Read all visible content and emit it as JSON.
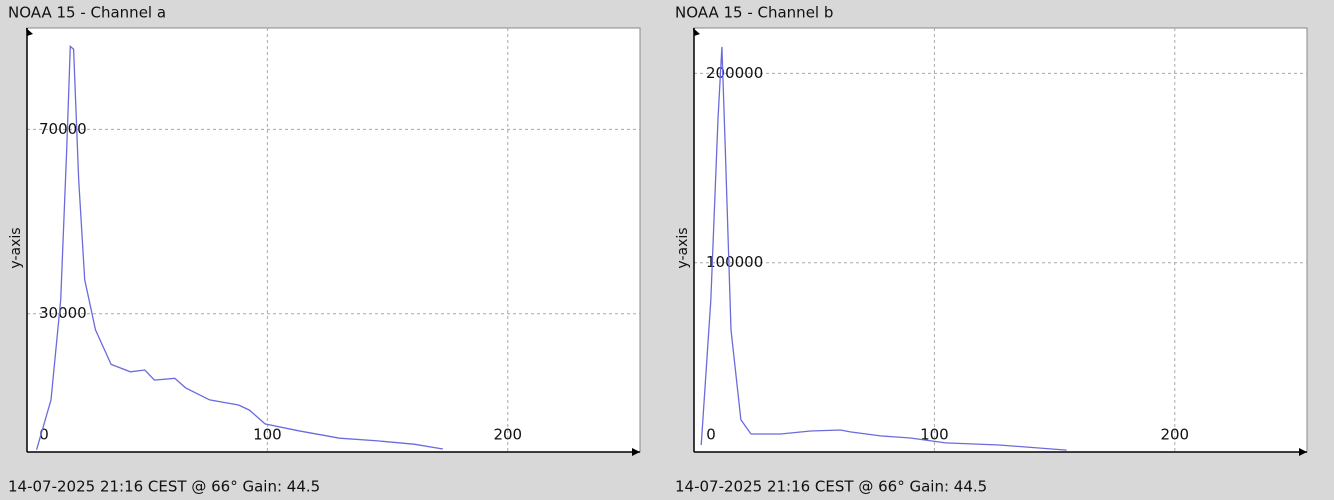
{
  "chart_data": [
    {
      "type": "line",
      "title": "NOAA 15 - Channel a",
      "ylabel": "y-axis",
      "footer": "14-07-2025 21:16 CEST @ 66° Gain: 44.5",
      "color": "#6b6bdc",
      "grid": true,
      "x": [
        4,
        10,
        14,
        16.5,
        18,
        19.4,
        21.5,
        24,
        28.5,
        35,
        43,
        49,
        53,
        61.5,
        66,
        76,
        88,
        92.5,
        99,
        113,
        130,
        146,
        161,
        173
      ],
      "values": [
        500,
        11300,
        33000,
        65600,
        88000,
        87400,
        59000,
        37400,
        26500,
        19000,
        17400,
        17800,
        15600,
        16000,
        13900,
        11300,
        10200,
        9100,
        6100,
        4600,
        3000,
        2400,
        1700,
        650
      ],
      "xlim": [
        0,
        255
      ],
      "xticks": [
        0,
        100,
        200
      ],
      "ylim": [
        0,
        92000
      ],
      "yticks": [
        30000,
        70000
      ]
    },
    {
      "type": "line",
      "title": "NOAA 15 - Channel b",
      "ylabel": "y-axis",
      "footer": "14-07-2025 21:16 CEST @ 66° Gain: 44.5",
      "color": "#6b6bdc",
      "grid": true,
      "x": [
        3,
        7,
        10,
        11.6,
        13,
        15.4,
        19.5,
        23.7,
        36,
        48.5,
        61,
        65,
        77.6,
        90,
        104.6,
        127,
        155
      ],
      "values": [
        3700,
        80000,
        176000,
        214000,
        160000,
        64500,
        17000,
        9500,
        9500,
        11100,
        11600,
        10600,
        8500,
        7400,
        4800,
        3700,
        1000
      ],
      "xlim": [
        0,
        255
      ],
      "xticks": [
        0,
        100,
        200
      ],
      "ylim": [
        0,
        224000
      ],
      "yticks": [
        100000,
        200000
      ]
    }
  ]
}
